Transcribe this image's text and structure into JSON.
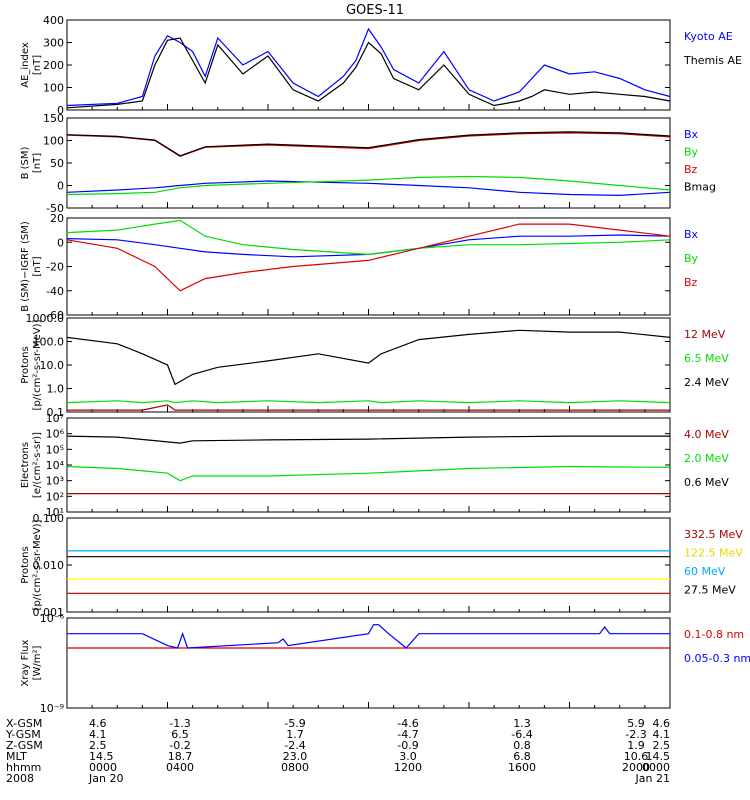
{
  "title": "GOES-11",
  "colors": {
    "black": "#000000",
    "blue": "#0000ff",
    "red": "#dd0000",
    "green": "#00dd00",
    "darkred": "#aa0000",
    "yellow": "#ffff00",
    "cyan": "#00aaff"
  },
  "x_axis": {
    "rows": [
      {
        "label": "X-GSM",
        "values": [
          "4.6",
          "-1.3",
          "-5.9",
          "-4.6",
          "1.3",
          "5.9",
          "4.6"
        ]
      },
      {
        "label": "Y-GSM",
        "values": [
          "4.1",
          "6.5",
          "1.7",
          "-4.7",
          "-6.4",
          "-2.3",
          "4.1"
        ]
      },
      {
        "label": "Z-GSM",
        "values": [
          "2.5",
          "-0.2",
          "-2.4",
          "-0.9",
          "0.8",
          "1.9",
          "2.5"
        ]
      },
      {
        "label": "MLT",
        "values": [
          "14.5",
          "18.7",
          "23.0",
          "3.0",
          "6.8",
          "10.6",
          "14.5"
        ]
      },
      {
        "label": "hhmm",
        "values": [
          "0000",
          "0400",
          "0800",
          "1200",
          "1600",
          "2000",
          "0000"
        ]
      },
      {
        "label": "2008",
        "values": [
          "Jan 20",
          "",
          "",
          "",
          "",
          "",
          "Jan 21"
        ]
      }
    ]
  },
  "chart_data": [
    {
      "type": "line",
      "id": "ae",
      "ylabel": "AE_index\n[nT]",
      "ylim": [
        0,
        400
      ],
      "yticks": [
        "400",
        "300",
        "200",
        "100",
        "0"
      ],
      "x": [
        0,
        2,
        3,
        3.5,
        4,
        4.5,
        5,
        5.5,
        6,
        7,
        8,
        9,
        10,
        11,
        11.5,
        12,
        12.5,
        13,
        14,
        15,
        16,
        17,
        18,
        18.5,
        19,
        20,
        21,
        22,
        23,
        24
      ],
      "series": [
        {
          "name": "Kyoto AE",
          "color": "blue",
          "values": [
            20,
            30,
            60,
            240,
            330,
            300,
            260,
            150,
            320,
            200,
            260,
            120,
            60,
            150,
            220,
            360,
            280,
            180,
            120,
            260,
            90,
            40,
            80,
            140,
            200,
            160,
            170,
            140,
            90,
            60
          ]
        },
        {
          "name": "Themis AE",
          "color": "black",
          "values": [
            10,
            25,
            40,
            200,
            310,
            320,
            220,
            120,
            290,
            160,
            240,
            90,
            40,
            120,
            190,
            300,
            250,
            140,
            90,
            200,
            70,
            20,
            40,
            60,
            90,
            70,
            80,
            70,
            60,
            40
          ]
        }
      ]
    },
    {
      "type": "line",
      "id": "b_sm",
      "ylabel": "B (SM)\n[nT]",
      "ylim": [
        -50,
        150
      ],
      "yticks": [
        "150",
        "100",
        "50",
        "0",
        "-50"
      ],
      "x": [
        0,
        2,
        3.5,
        4.5,
        5.5,
        8,
        12,
        14,
        16,
        18,
        20,
        22,
        24
      ],
      "series": [
        {
          "name": "Bx",
          "color": "blue",
          "values": [
            -15,
            -10,
            -5,
            0,
            5,
            10,
            5,
            0,
            -5,
            -15,
            -20,
            -22,
            -15
          ]
        },
        {
          "name": "By",
          "color": "green",
          "values": [
            -20,
            -18,
            -15,
            -5,
            0,
            5,
            12,
            18,
            20,
            18,
            10,
            0,
            -10
          ]
        },
        {
          "name": "Bz",
          "color": "red",
          "values": [
            112,
            108,
            100,
            65,
            85,
            90,
            82,
            100,
            110,
            115,
            117,
            115,
            108
          ]
        },
        {
          "name": "Bmag",
          "color": "black",
          "values": [
            113,
            109,
            101,
            66,
            86,
            92,
            84,
            102,
            112,
            117,
            119,
            117,
            110
          ]
        }
      ]
    },
    {
      "type": "line",
      "id": "b_igrf",
      "ylabel": "B (SM)−IGRF (SM)\n[nT]",
      "ylim": [
        -60,
        20
      ],
      "yticks": [
        "20",
        "0",
        "-20",
        "-40",
        "-60"
      ],
      "x": [
        0,
        2,
        3.5,
        4.5,
        5.5,
        7,
        9,
        12,
        14,
        16,
        18,
        20,
        22,
        24
      ],
      "series": [
        {
          "name": "Bx",
          "color": "blue",
          "values": [
            3,
            2,
            -2,
            -5,
            -8,
            -10,
            -12,
            -10,
            -5,
            2,
            5,
            5,
            6,
            5
          ]
        },
        {
          "name": "By",
          "color": "green",
          "values": [
            8,
            10,
            15,
            18,
            5,
            -2,
            -6,
            -10,
            -5,
            -2,
            -2,
            -1,
            0,
            2
          ]
        },
        {
          "name": "Bz",
          "color": "red",
          "values": [
            2,
            -5,
            -20,
            -40,
            -30,
            -25,
            -20,
            -15,
            -5,
            5,
            15,
            15,
            10,
            5
          ]
        }
      ]
    },
    {
      "type": "line",
      "id": "protons",
      "ylabel": "Protons\n[p/(cm²-s-sr-MeV)]",
      "ylim": [
        0.1,
        1000
      ],
      "log": true,
      "yticks": [
        "1000.0",
        "100.0",
        "10.0",
        "1.0",
        "0.1"
      ],
      "x": [
        0,
        2,
        3,
        4,
        4.3,
        5,
        6,
        8,
        10,
        12,
        12.5,
        14,
        16,
        18,
        20,
        22,
        24
      ],
      "series": [
        {
          "name": "12 MeV",
          "color": "darkred",
          "values": [
            0.12,
            0.12,
            0.12,
            0.2,
            0.12,
            0.12,
            0.12,
            0.12,
            0.12,
            0.12,
            0.12,
            0.12,
            0.12,
            0.12,
            0.12,
            0.12,
            0.12
          ]
        },
        {
          "name": "6.5 MeV",
          "color": "green",
          "values": [
            0.25,
            0.3,
            0.25,
            0.3,
            0.25,
            0.3,
            0.25,
            0.3,
            0.25,
            0.3,
            0.25,
            0.3,
            0.25,
            0.3,
            0.25,
            0.3,
            0.25
          ]
        },
        {
          "name": "2.4 MeV",
          "color": "black",
          "values": [
            150,
            80,
            30,
            10,
            1.5,
            4,
            8,
            15,
            30,
            12,
            30,
            120,
            200,
            300,
            250,
            250,
            150
          ]
        }
      ]
    },
    {
      "type": "line",
      "id": "electrons",
      "ylabel": "Electrons\n[e/(cm²-s-sr)]",
      "ylim": [
        10,
        10000000
      ],
      "log": true,
      "yticks": [
        "10⁷",
        "10⁶",
        "10⁵",
        "10⁴",
        "10³",
        "10²",
        "10¹"
      ],
      "x": [
        0,
        2,
        4,
        4.5,
        5,
        8,
        12,
        16,
        20,
        24
      ],
      "series": [
        {
          "name": "4.0 MeV",
          "color": "darkred",
          "values": [
            150,
            150,
            150,
            150,
            150,
            150,
            150,
            150,
            150,
            150
          ]
        },
        {
          "name": "2.0 MeV",
          "color": "green",
          "values": [
            8000,
            6000,
            3000,
            1000,
            2000,
            2000,
            3000,
            6000,
            8000,
            7000
          ]
        },
        {
          "name": "0.6 MeV",
          "color": "black",
          "values": [
            700000,
            600000,
            300000,
            250000,
            350000,
            400000,
            450000,
            600000,
            700000,
            700000
          ]
        }
      ]
    },
    {
      "type": "line",
      "id": "protons_hi",
      "ylabel": "Protons\n[p/(cm²-s-sr-MeV)]",
      "ylim": [
        0.001,
        0.1
      ],
      "log": true,
      "yticks": [
        "0.100",
        "0.010",
        "0.001"
      ],
      "x": [
        0,
        4,
        8,
        12,
        16,
        20,
        24
      ],
      "series": [
        {
          "name": "332.5 MeV",
          "color": "darkred",
          "values": [
            0.0025,
            0.0025,
            0.0025,
            0.0025,
            0.0025,
            0.0025,
            0.0025
          ]
        },
        {
          "name": "122.5 MeV",
          "color": "yellow",
          "values": [
            0.005,
            0.005,
            0.005,
            0.005,
            0.005,
            0.005,
            0.005
          ]
        },
        {
          "name": "60 MeV",
          "color": "cyan",
          "values": [
            0.02,
            0.02,
            0.02,
            0.02,
            0.02,
            0.02,
            0.02
          ]
        },
        {
          "name": "27.5 MeV",
          "color": "black",
          "values": [
            0.015,
            0.015,
            0.015,
            0.015,
            0.015,
            0.015,
            0.015
          ]
        }
      ]
    },
    {
      "type": "line",
      "id": "xray",
      "ylabel": "Xray Flux\n[W/m²]",
      "ylim": [
        1e-09,
        1e-06
      ],
      "log": true,
      "yticks": [
        "10⁻⁶",
        "10⁻⁹"
      ],
      "x": [
        0,
        3,
        4,
        4.4,
        4.6,
        4.8,
        8.4,
        8.6,
        8.8,
        12.0,
        12.2,
        12.4,
        12.8,
        13.5,
        14.0,
        21.2,
        21.4,
        21.6,
        24
      ],
      "series": [
        {
          "name": "0.1-0.8 nm",
          "color": "red",
          "values": [
            1e-07,
            1e-07,
            1e-07,
            1e-07,
            1e-07,
            1e-07,
            1e-07,
            1e-07,
            1e-07,
            1e-07,
            1e-07,
            1e-07,
            1e-07,
            1e-07,
            1e-07,
            1e-07,
            1e-07,
            1e-07,
            1e-07
          ]
        },
        {
          "name": "0.05-0.3 nm",
          "color": "blue",
          "values": [
            3e-07,
            3e-07,
            1.2e-07,
            1e-07,
            3e-07,
            1e-07,
            1.5e-07,
            2e-07,
            1.2e-07,
            3e-07,
            6e-07,
            6e-07,
            3e-07,
            1e-07,
            3e-07,
            3e-07,
            5e-07,
            3e-07,
            3e-07
          ]
        }
      ]
    }
  ]
}
